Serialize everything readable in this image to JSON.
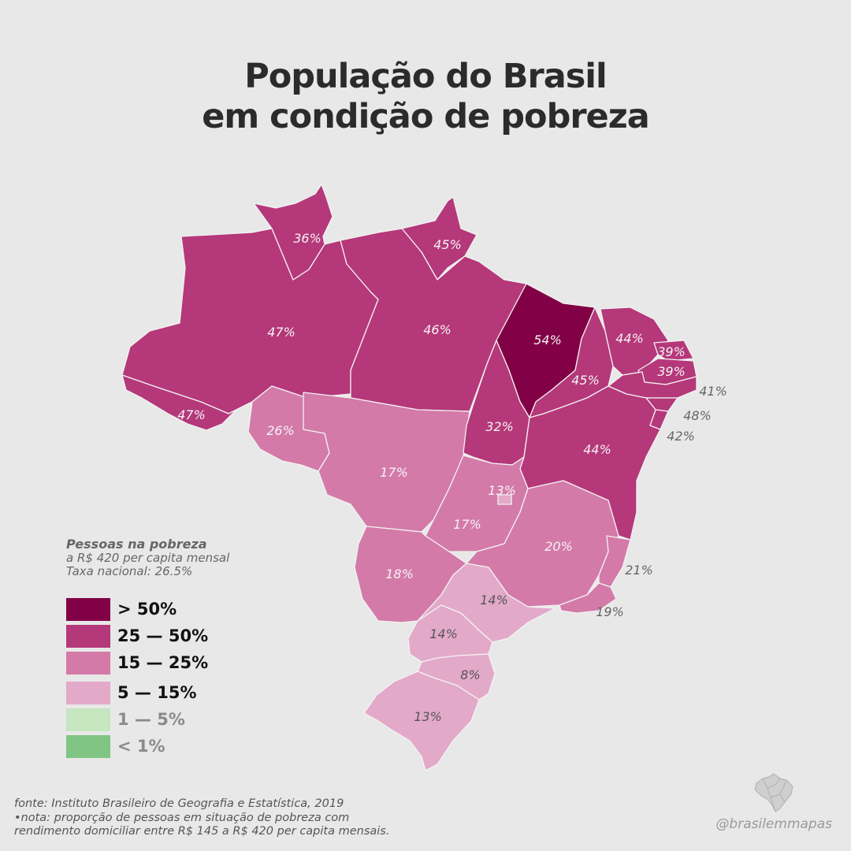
{
  "title": {
    "line1": "População do Brasil",
    "line2": "em condição de pobreza"
  },
  "colors": {
    "background": "#e8e8e8",
    "gt50": "#820046",
    "c25_50": "#b5387a",
    "c15_25": "#d47aa9",
    "c5_15": "#e3a9c9",
    "c1_5": "#c6e6c0",
    "lt1": "#80c583",
    "border": "#f2f2f2"
  },
  "states": {
    "RR": {
      "name": "Roraima",
      "value": "36%",
      "class": "25-50"
    },
    "AP": {
      "name": "Amapá",
      "value": "45%",
      "class": "25-50"
    },
    "AM": {
      "name": "Amazonas",
      "value": "47%",
      "class": "25-50"
    },
    "PA": {
      "name": "Pará",
      "value": "46%",
      "class": "25-50"
    },
    "MA": {
      "name": "Maranhão",
      "value": "54%",
      "class": ">50"
    },
    "CE": {
      "name": "Ceará",
      "value": "44%",
      "class": "25-50"
    },
    "RN": {
      "name": "Rio Grande do Norte",
      "value": "39%",
      "class": "25-50"
    },
    "PB": {
      "name": "Paraíba",
      "value": "39%",
      "class": "25-50"
    },
    "PE": {
      "name": "Pernambuco",
      "value": "41%",
      "class": "25-50"
    },
    "AL": {
      "name": "Alagoas",
      "value": "48%",
      "class": "25-50"
    },
    "SE": {
      "name": "Sergipe",
      "value": "42%",
      "class": "25-50"
    },
    "PI": {
      "name": "Piauí",
      "value": "45%",
      "class": "25-50"
    },
    "AC": {
      "name": "Acre",
      "value": "47%",
      "class": "25-50"
    },
    "RO": {
      "name": "Rondônia",
      "value": "26%",
      "class": "25-50"
    },
    "TO": {
      "name": "Tocantins",
      "value": "32%",
      "class": "25-50"
    },
    "BA": {
      "name": "Bahia",
      "value": "44%",
      "class": "25-50"
    },
    "MT": {
      "name": "Mato Grosso",
      "value": "17%",
      "class": "15-25"
    },
    "DF": {
      "name": "Distrito Federal",
      "value": "13%",
      "class": "5-15"
    },
    "GO": {
      "name": "Goiás",
      "value": "17%",
      "class": "15-25"
    },
    "MG": {
      "name": "Minas Gerais",
      "value": "20%",
      "class": "15-25"
    },
    "ES": {
      "name": "Espírito Santo",
      "value": "21%",
      "class": "15-25"
    },
    "MS": {
      "name": "Mato Grosso do Sul",
      "value": "18%",
      "class": "15-25"
    },
    "SP": {
      "name": "São Paulo",
      "value": "14%",
      "class": "5-15"
    },
    "RJ": {
      "name": "Rio de Janeiro",
      "value": "19%",
      "class": "15-25"
    },
    "PR": {
      "name": "Paraná",
      "value": "14%",
      "class": "5-15"
    },
    "SC": {
      "name": "Santa Catarina",
      "value": "8%",
      "class": "5-15"
    },
    "RS": {
      "name": "Rio Grande do Sul",
      "value": "13%",
      "class": "5-15"
    }
  },
  "legend": {
    "title": "Pessoas na pobreza",
    "subtitle1": "a R$ 420 per capita mensal",
    "subtitle2": "Taxa nacional: 26.5%",
    "items": [
      {
        "label": "> 50%",
        "color": "#820046"
      },
      {
        "label": "25 — 50%",
        "color": "#b5387a"
      },
      {
        "label": "15 — 25%",
        "color": "#d47aa9"
      },
      {
        "label": "5 — 15%",
        "color": "#e3a9c9"
      },
      {
        "label": "1 — 5%",
        "color": "#c6e6c0"
      },
      {
        "label": "< 1%",
        "color": "#80c583"
      }
    ]
  },
  "footer": {
    "source": "fonte: Instituto Brasileiro de Geografia e Estatística, 2019",
    "note1": "•nota: proporção de pessoas em situação de pobreza com",
    "note2": "rendimento domiciliar entre R$ 145 a R$ 420 per capita mensais."
  },
  "credit": "@brasilemmapas"
}
